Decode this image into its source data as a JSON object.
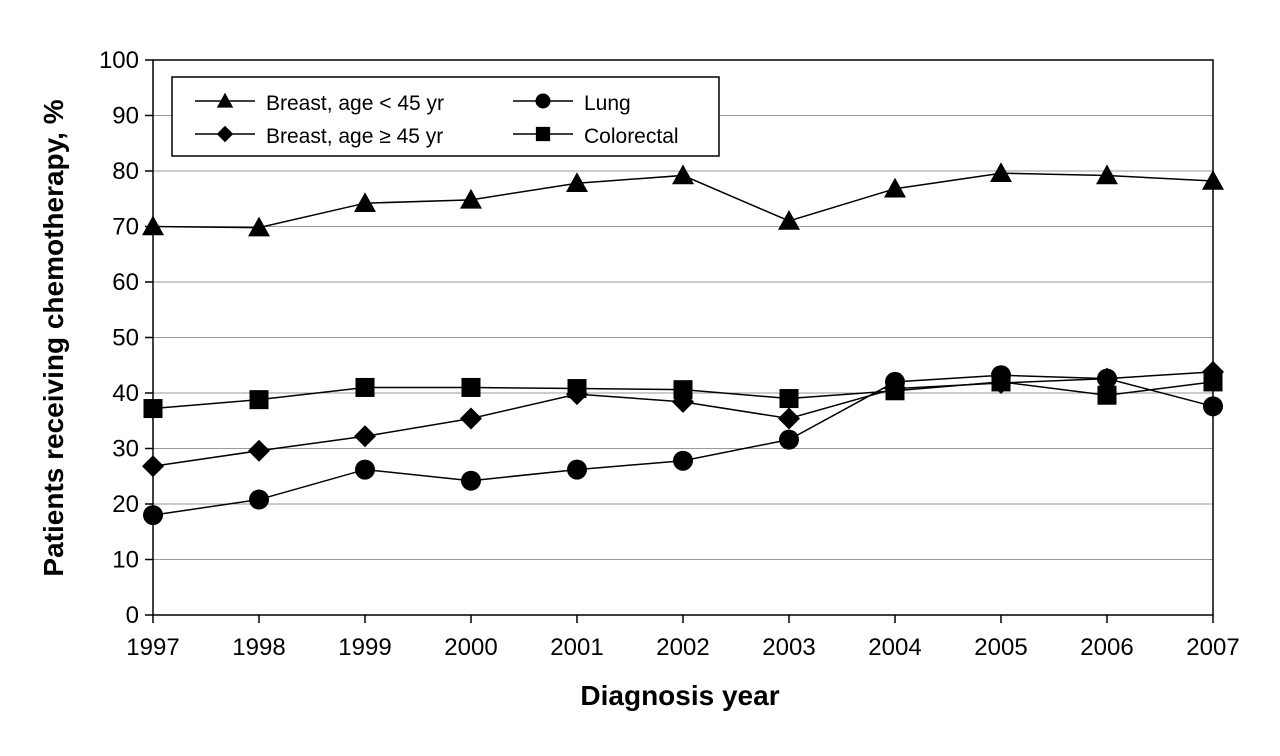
{
  "chart_data": {
    "type": "line",
    "xlabel": "Diagnosis year",
    "ylabel": "Patients receiving chemotherapy, %",
    "categories": [
      "1997",
      "1998",
      "1999",
      "2000",
      "2001",
      "2002",
      "2003",
      "2004",
      "2005",
      "2006",
      "2007"
    ],
    "ylim": [
      0,
      100
    ],
    "yticks": [
      "0",
      "10",
      "20",
      "30",
      "40",
      "50",
      "60",
      "70",
      "80",
      "90",
      "100"
    ],
    "grid": "horizontal",
    "legend_position": "top-left",
    "series": [
      {
        "name": "Breast, age < 45 yr",
        "marker": "triangle",
        "values": [
          70,
          69.8,
          74.2,
          74.8,
          77.8,
          79.2,
          71,
          76.8,
          79.6,
          79.2,
          78.2
        ]
      },
      {
        "name": "Breast, age ≥ 45 yr",
        "marker": "diamond",
        "values": [
          26.8,
          29.6,
          32.2,
          35.4,
          39.8,
          38.4,
          35.4,
          40.8,
          41.8,
          42.6,
          43.8
        ]
      },
      {
        "name": "Lung",
        "marker": "circle",
        "values": [
          18,
          20.8,
          26.2,
          24.2,
          26.2,
          27.8,
          31.6,
          42,
          43.2,
          42.6,
          37.6
        ]
      },
      {
        "name": "Colorectal",
        "marker": "square",
        "values": [
          37.2,
          38.8,
          41,
          41,
          40.8,
          40.6,
          39,
          40.4,
          42,
          39.6,
          42
        ]
      }
    ]
  }
}
